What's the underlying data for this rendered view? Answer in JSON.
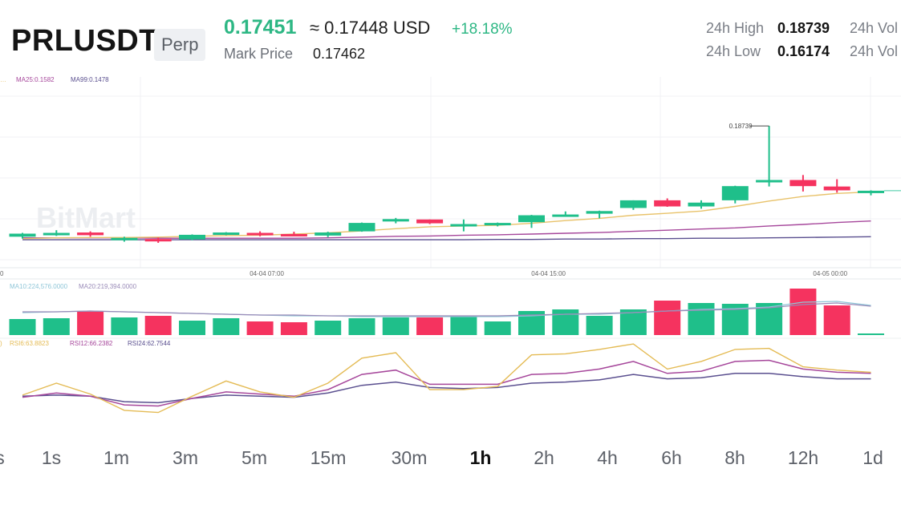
{
  "header": {
    "symbol": "PRLUSDT",
    "contract_type": "Perp",
    "last_price": "0.17451",
    "usd_price": "≈ 0.17448 USD",
    "change_24h": "+18.18%",
    "mark_price_label": "Mark Price",
    "mark_price": "0.17462",
    "high_label": "24h High",
    "high_value": "0.18739",
    "low_label": "24h Low",
    "low_value": "0.16174",
    "vol_label_1": "24h Vol",
    "vol_label_2": "24h Vol"
  },
  "watermark": "BitMart",
  "colors": {
    "up": "#1fbf8a",
    "down": "#f5335f",
    "ma7": "#e8c26a",
    "ma25": "#a6479b",
    "ma99": "#5a4f8f",
    "rsi6": "#e4bb55",
    "rsi12": "#a6479b",
    "rsi24": "#5a4f8f",
    "vol_ma10": "#8fc6d8",
    "vol_ma20": "#9a8bb8"
  },
  "chart_data": {
    "type": "candlestick",
    "indicators": {
      "ma_partial": "…",
      "ma25": "MA25:0.1582",
      "ma99": "MA99:0.1478",
      "vol_ma10": "MA10:224,576.0000",
      "vol_ma20": "MA20:219,394.0000",
      "rsi_partial": ")",
      "rsi6": "RSI6:63.8823",
      "rsi12": "RSI12:66.2382",
      "rsi24": "RSI24:62.7544"
    },
    "x_ticks": [
      {
        "index": 7.2,
        "label": "04-04 07:00"
      },
      {
        "index": 15.5,
        "label": "04-04 15:00"
      },
      {
        "index": 23.8,
        "label": "04-05 00:00"
      }
    ],
    "left_clip_label": "0",
    "max_label": "0.18739",
    "price_range": [
      0.1525,
      0.196
    ],
    "candles": [
      {
        "o": 0.1585,
        "h": 0.1595,
        "l": 0.158,
        "c": 0.1593
      },
      {
        "o": 0.1595,
        "h": 0.1602,
        "l": 0.1587,
        "c": 0.1595
      },
      {
        "o": 0.1596,
        "h": 0.1599,
        "l": 0.1585,
        "c": 0.1589
      },
      {
        "o": 0.158,
        "h": 0.1585,
        "l": 0.1572,
        "c": 0.1582
      },
      {
        "o": 0.1579,
        "h": 0.1583,
        "l": 0.1569,
        "c": 0.1578
      },
      {
        "o": 0.1578,
        "h": 0.1591,
        "l": 0.1576,
        "c": 0.159
      },
      {
        "o": 0.1591,
        "h": 0.1597,
        "l": 0.1589,
        "c": 0.1596
      },
      {
        "o": 0.1595,
        "h": 0.1599,
        "l": 0.1586,
        "c": 0.1591
      },
      {
        "o": 0.1592,
        "h": 0.1598,
        "l": 0.1588,
        "c": 0.1591
      },
      {
        "o": 0.1588,
        "h": 0.1598,
        "l": 0.1584,
        "c": 0.1596
      },
      {
        "o": 0.1599,
        "h": 0.1622,
        "l": 0.1598,
        "c": 0.1621
      },
      {
        "o": 0.1627,
        "h": 0.1634,
        "l": 0.162,
        "c": 0.1631
      },
      {
        "o": 0.163,
        "h": 0.163,
        "l": 0.1618,
        "c": 0.162
      },
      {
        "o": 0.1618,
        "h": 0.163,
        "l": 0.1599,
        "c": 0.1618
      },
      {
        "o": 0.1618,
        "h": 0.1622,
        "l": 0.1612,
        "c": 0.1621
      },
      {
        "o": 0.1623,
        "h": 0.1642,
        "l": 0.1608,
        "c": 0.1641
      },
      {
        "o": 0.1643,
        "h": 0.1651,
        "l": 0.1637,
        "c": 0.1643
      },
      {
        "o": 0.1645,
        "h": 0.1653,
        "l": 0.1633,
        "c": 0.1652
      },
      {
        "o": 0.166,
        "h": 0.168,
        "l": 0.1655,
        "c": 0.168
      },
      {
        "o": 0.168,
        "h": 0.1685,
        "l": 0.1663,
        "c": 0.1664
      },
      {
        "o": 0.1664,
        "h": 0.168,
        "l": 0.1658,
        "c": 0.1674
      },
      {
        "o": 0.168,
        "h": 0.1718,
        "l": 0.1672,
        "c": 0.1717
      },
      {
        "o": 0.1728,
        "h": 0.1874,
        "l": 0.1716,
        "c": 0.1733
      },
      {
        "o": 0.1733,
        "h": 0.1746,
        "l": 0.1703,
        "c": 0.1717
      },
      {
        "o": 0.1716,
        "h": 0.1735,
        "l": 0.17,
        "c": 0.1706
      },
      {
        "o": 0.1702,
        "h": 0.1706,
        "l": 0.1693,
        "c": 0.1705
      }
    ],
    "ma7": [
      0.158,
      0.1582,
      0.1583,
      0.1583,
      0.1584,
      0.1586,
      0.1588,
      0.1589,
      0.1592,
      0.1595,
      0.16,
      0.1606,
      0.1611,
      0.1613,
      0.1615,
      0.162,
      0.1627,
      0.1633,
      0.1641,
      0.1646,
      0.1652,
      0.1664,
      0.1678,
      0.169,
      0.1698,
      0.1702
    ],
    "ma25": [
      0.1582,
      0.1582,
      0.1582,
      0.1582,
      0.1581,
      0.1581,
      0.1581,
      0.1581,
      0.1581,
      0.1582,
      0.1584,
      0.1586,
      0.1587,
      0.1589,
      0.159,
      0.1592,
      0.1594,
      0.1596,
      0.1599,
      0.1602,
      0.1605,
      0.1608,
      0.1613,
      0.1617,
      0.1622,
      0.1626
    ],
    "ma99": [
      0.1577,
      0.1577,
      0.1577,
      0.1577,
      0.1577,
      0.1577,
      0.1577,
      0.1577,
      0.1577,
      0.1577,
      0.1577,
      0.1577,
      0.1577,
      0.1577,
      0.1578,
      0.1578,
      0.1579,
      0.1579,
      0.158,
      0.158,
      0.1581,
      0.1581,
      0.1582,
      0.1583,
      0.1584,
      0.1585
    ],
    "volume": [
      20,
      21,
      30,
      22,
      24,
      18,
      21,
      17,
      16,
      18,
      21,
      22,
      22,
      23,
      17,
      30,
      32,
      24,
      32,
      43,
      40,
      39,
      40,
      58,
      37,
      2
    ],
    "vol_ma10": [
      28,
      29,
      30,
      29,
      28,
      27,
      26,
      25,
      24,
      24,
      23,
      23,
      23,
      23,
      23,
      24,
      26,
      26,
      28,
      30,
      32,
      33,
      35,
      41,
      42,
      37
    ],
    "vol_ma20": [
      29,
      29,
      30,
      29,
      28,
      27,
      26,
      25,
      25,
      24,
      24,
      24,
      24,
      24,
      24,
      25,
      26,
      27,
      28,
      30,
      31,
      32,
      34,
      38,
      40,
      36
    ],
    "rsi6": [
      47,
      58,
      48,
      33,
      31,
      46,
      60,
      50,
      45,
      58,
      81,
      86,
      52,
      52,
      55,
      84,
      85,
      89,
      94,
      71,
      78,
      89,
      90,
      73,
      70,
      68
    ],
    "rsi12": [
      45,
      49,
      46,
      38,
      37,
      44,
      50,
      48,
      46,
      52,
      66,
      70,
      57,
      57,
      57,
      66,
      67,
      71,
      78,
      67,
      69,
      78,
      79,
      71,
      68,
      67
    ],
    "rsi24": [
      46,
      47,
      46,
      41,
      40,
      44,
      47,
      46,
      45,
      49,
      56,
      59,
      54,
      53,
      54,
      58,
      59,
      61,
      66,
      62,
      63,
      67,
      67,
      64,
      62,
      62
    ],
    "rsi_range": [
      30,
      100
    ]
  },
  "timeframes": [
    {
      "label": "s",
      "active": false
    },
    {
      "label": "1s",
      "active": false
    },
    {
      "label": "1m",
      "active": false
    },
    {
      "label": "3m",
      "active": false
    },
    {
      "label": "5m",
      "active": false
    },
    {
      "label": "15m",
      "active": false
    },
    {
      "label": "30m",
      "active": false
    },
    {
      "label": "1h",
      "active": true
    },
    {
      "label": "2h",
      "active": false
    },
    {
      "label": "4h",
      "active": false
    },
    {
      "label": "6h",
      "active": false
    },
    {
      "label": "8h",
      "active": false
    },
    {
      "label": "12h",
      "active": false
    },
    {
      "label": "1d",
      "active": false
    }
  ]
}
